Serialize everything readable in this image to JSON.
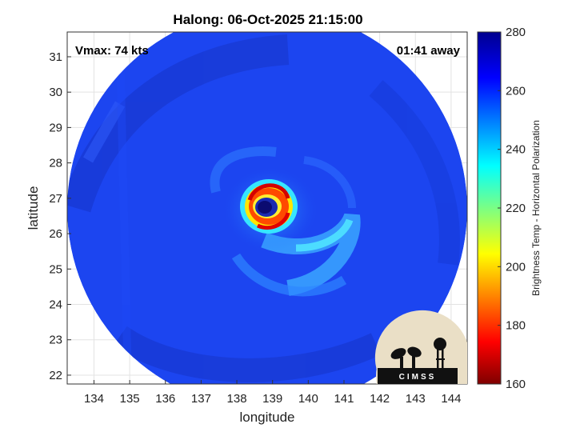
{
  "title": "Halong: 06-Oct-2025 21:15:00",
  "annotations": {
    "vmax": "Vmax: 74 kts",
    "time_away": "01:41 away"
  },
  "map": {
    "xlabel": "longitude",
    "ylabel": "latitude",
    "lon_range": [
      133.25,
      144.45
    ],
    "lat_range": [
      21.75,
      31.7
    ],
    "lon_ticks": [
      134,
      135,
      136,
      137,
      138,
      139,
      140,
      141,
      142,
      143,
      144
    ],
    "lat_ticks": [
      22,
      23,
      24,
      25,
      26,
      27,
      28,
      29,
      30,
      31
    ],
    "storm_center": {
      "lon": 138.7,
      "lat": 26.7
    },
    "swath_center": {
      "lon": 138.85,
      "lat": 26.7
    },
    "swath_radius_deg": 5.6,
    "grid": true
  },
  "colorbar": {
    "label": "Brightness Temp - Horizontal Polarization",
    "min": 160,
    "max": 280,
    "ticks": [
      160,
      180,
      200,
      220,
      240,
      260,
      280
    ],
    "colormap": "jet",
    "colors": [
      "#7f0000",
      "#ff0000",
      "#ffff00",
      "#00ffff",
      "#0000ff",
      "#00008f"
    ]
  },
  "logo": {
    "text": "CIMSS",
    "background": "#eadfc6"
  }
}
